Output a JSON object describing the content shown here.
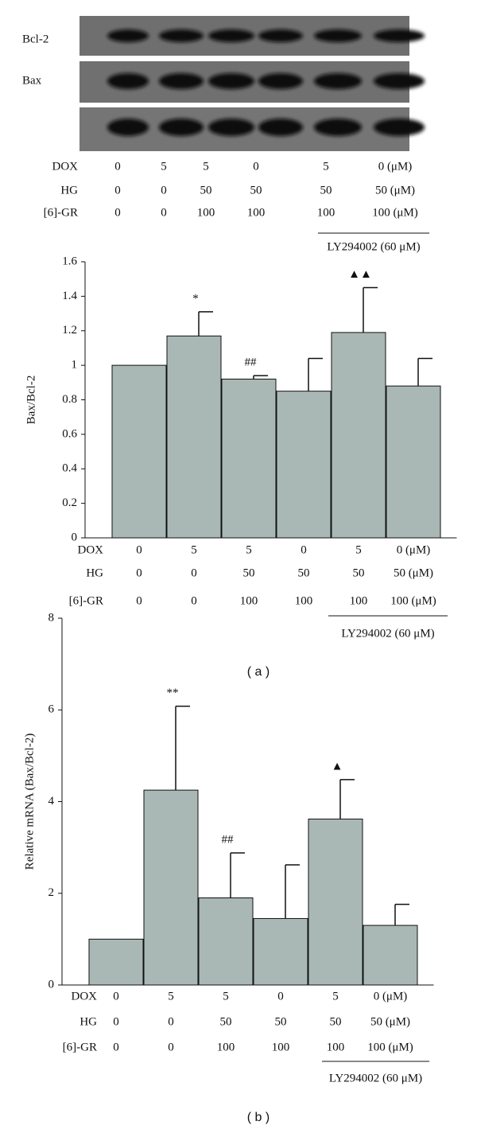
{
  "blot": {
    "labels": [
      "Bcl-2",
      "Bax"
    ],
    "conditions": [
      {
        "name": "DOX",
        "values": [
          "0",
          "5",
          "5",
          "0",
          "5",
          "0 (μM)"
        ]
      },
      {
        "name": "HG",
        "values": [
          "0",
          "0",
          "50",
          "50",
          "50",
          "50 (μM)"
        ]
      },
      {
        "name": "[6]-GR",
        "values": [
          "0",
          "0",
          "100",
          "100",
          "100",
          "100 (μM)"
        ]
      }
    ],
    "inhibitor": "LY294002 (60 μM)"
  },
  "chart_data": [
    {
      "type": "bar",
      "y_label": "Bax/Bcl-2",
      "color": "#a9b8b5",
      "categories": [
        null,
        null,
        null,
        null,
        null,
        null
      ],
      "values": [
        1.0,
        1.17,
        0.92,
        0.85,
        1.19,
        0.88
      ],
      "errors": [
        null,
        0.14,
        0.02,
        0.19,
        0.26,
        0.16
      ],
      "value_annotations": [
        null,
        "*",
        "##",
        null,
        "▲▲",
        null
      ],
      "ylim": [
        0,
        1.6
      ],
      "yticks": [
        0,
        0.2,
        0.4,
        0.6,
        0.8,
        1,
        1.2,
        1.4,
        1.6
      ],
      "conditions": [
        {
          "name": "DOX",
          "values": [
            "0",
            "5",
            "5",
            "0",
            "5",
            "0 (μM)"
          ]
        },
        {
          "name": "HG",
          "values": [
            "0",
            "0",
            "50",
            "50",
            "50",
            "50 (μM)"
          ]
        },
        {
          "name": "[6]-GR",
          "values": [
            "0",
            "0",
            "100",
            "100",
            "100",
            "100 (μM)"
          ]
        }
      ],
      "inhibitor": "LY294002 (60 μM)",
      "panel_label": "( a )"
    },
    {
      "type": "bar",
      "y_label": "Relative mRNA (Bax/Bcl-2)",
      "color": "#a9b8b5",
      "categories": [
        null,
        null,
        null,
        null,
        null,
        null
      ],
      "values": [
        1.0,
        4.25,
        1.9,
        1.45,
        3.62,
        1.3
      ],
      "errors": [
        null,
        1.83,
        0.98,
        1.17,
        0.86,
        0.46
      ],
      "value_annotations": [
        null,
        "**",
        "##",
        null,
        "▲",
        null
      ],
      "ylim": [
        0,
        8
      ],
      "yticks": [
        0,
        2,
        4,
        6,
        8
      ],
      "conditions": [
        {
          "name": "DOX",
          "values": [
            "0",
            "5",
            "5",
            "0",
            "5",
            "0 (μM)"
          ]
        },
        {
          "name": "HG",
          "values": [
            "0",
            "0",
            "50",
            "50",
            "50",
            "50 (μM)"
          ]
        },
        {
          "name": "[6]-GR",
          "values": [
            "0",
            "0",
            "100",
            "100",
            "100",
            "100 (μM)"
          ]
        }
      ],
      "inhibitor": "LY294002 (60 μM)",
      "panel_label": "( b )"
    }
  ]
}
